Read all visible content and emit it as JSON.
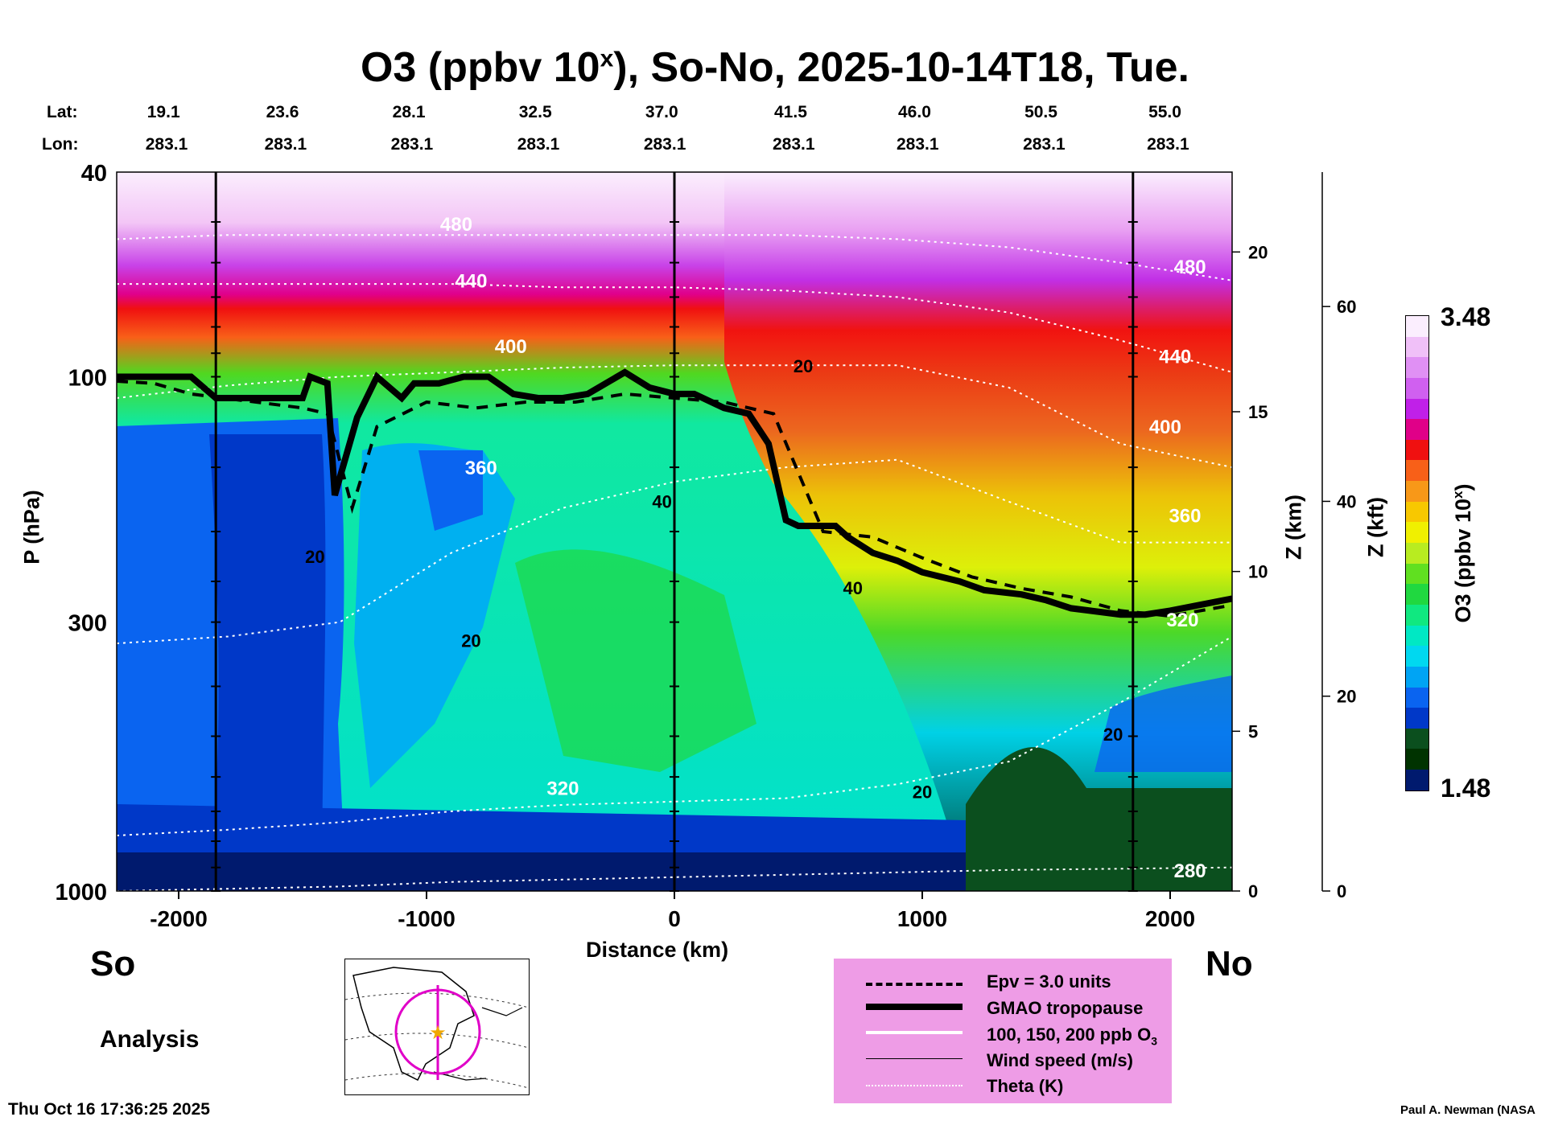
{
  "title_main": "O3 (ppbv 10",
  "title_sup": "x",
  "title_rest": "), So-No, 2025-10-14T18, Tue.",
  "lat_label": "Lat:",
  "lon_label": "Lon:",
  "lats": [
    "19.1",
    "23.6",
    "28.1",
    "32.5",
    "37.0",
    "41.5",
    "46.0",
    "50.5",
    "55.0"
  ],
  "lons": [
    "283.1",
    "283.1",
    "283.1",
    "283.1",
    "283.1",
    "283.1",
    "283.1",
    "283.1",
    "283.1"
  ],
  "left_label": "So",
  "right_label": "No",
  "analysis_label": "Analysis",
  "timestamp": "Thu Oct 16 17:36:25 2025",
  "credit": "Paul A. Newman (NASA",
  "colorbar": {
    "label": "O3 (ppbv 10",
    "label_sup": "x",
    "label_end": ")",
    "max": "3.48",
    "min": "1.48",
    "colors": [
      "#001a6e",
      "#003300",
      "#0b4f1e",
      "#0038c8",
      "#0a64f0",
      "#00a4f4",
      "#00d8f0",
      "#00e8c4",
      "#10e880",
      "#20d840",
      "#60e020",
      "#b8ec20",
      "#f0f000",
      "#f8c800",
      "#f89818",
      "#f86018",
      "#f01010",
      "#e00088",
      "#c020e8",
      "#d060f0",
      "#e090f4",
      "#f0c0f8",
      "#fbeefe"
    ]
  },
  "legend": {
    "epv": "Epv = 3.0 units",
    "trop": "GMAO tropopause",
    "o3_prefix": "100, 150, 200 ppb O",
    "o3_sub": "3",
    "wind": "Wind speed (m/s)",
    "theta": "Theta (K)"
  },
  "chart_data": {
    "type": "heatmap",
    "xlabel": "Distance (km)",
    "ylabel": "P (hPa)",
    "y2label": "Z (km)",
    "y3label": "Z (kft)",
    "xlim": [
      -2250,
      2250
    ],
    "ylim": [
      1000,
      40
    ],
    "y_scale": "log",
    "x_ticks": [
      "-2000",
      "-1000",
      "0",
      "1000",
      "2000"
    ],
    "x_tick_values": [
      -2000,
      -1000,
      0,
      1000,
      2000
    ],
    "p_ticks": [
      "40",
      "100",
      "300",
      "1000"
    ],
    "p_tick_values": [
      40,
      100,
      300,
      1000
    ],
    "z_km_ticks": [
      "0",
      "5",
      "10",
      "15",
      "20"
    ],
    "z_km_values": [
      0,
      5,
      10,
      15,
      20
    ],
    "z_kft_ticks": [
      "0",
      "20",
      "40",
      "60"
    ],
    "z_kft_values": [
      0,
      20,
      40,
      60
    ],
    "grid": false,
    "theta_labels": [
      {
        "text": "480",
        "x": -880,
        "p": 52
      },
      {
        "text": "440",
        "x": -820,
        "p": 67
      },
      {
        "text": "400",
        "x": -660,
        "p": 90
      },
      {
        "text": "360",
        "x": -780,
        "p": 155
      },
      {
        "text": "320",
        "x": -450,
        "p": 650
      },
      {
        "text": "480",
        "x": 2080,
        "p": 63
      },
      {
        "text": "440",
        "x": 2020,
        "p": 94
      },
      {
        "text": "400",
        "x": 1980,
        "p": 129
      },
      {
        "text": "360",
        "x": 2060,
        "p": 192
      },
      {
        "text": "320",
        "x": 2050,
        "p": 306
      },
      {
        "text": "280",
        "x": 2080,
        "p": 940
      }
    ],
    "wind_labels": [
      {
        "text": "20",
        "x": 520,
        "p": 98
      },
      {
        "text": "40",
        "x": -50,
        "p": 180
      },
      {
        "text": "20",
        "x": -1450,
        "p": 230
      },
      {
        "text": "20",
        "x": -820,
        "p": 335
      },
      {
        "text": "40",
        "x": 720,
        "p": 265
      },
      {
        "text": "20",
        "x": 1770,
        "p": 510
      },
      {
        "text": "20",
        "x": 1000,
        "p": 660
      }
    ],
    "tropopause": {
      "x": [
        -2250,
        -2000,
        -1950,
        -1850,
        -1500,
        -1470,
        -1400,
        -1370,
        -1280,
        -1200,
        -1100,
        -1050,
        -950,
        -850,
        -750,
        -650,
        -550,
        -450,
        -350,
        -200,
        -100,
        0,
        80,
        200,
        300,
        380,
        450,
        500,
        550,
        650,
        700,
        800,
        900,
        1000,
        1150,
        1250,
        1400,
        1500,
        1600,
        1800,
        1900,
        2000,
        2250
      ],
      "p": [
        100,
        100,
        100,
        110,
        110,
        100,
        103,
        170,
        120,
        100,
        110,
        103,
        103,
        100,
        100,
        108,
        110,
        110,
        108,
        98,
        105,
        108,
        108,
        115,
        118,
        135,
        190,
        195,
        195,
        195,
        205,
        220,
        228,
        240,
        250,
        260,
        265,
        272,
        282,
        290,
        290,
        285,
        270
      ]
    },
    "epv_line": {
      "x": [
        -2250,
        -2100,
        -1950,
        -1500,
        -1400,
        -1300,
        -1200,
        -1000,
        -800,
        -600,
        -400,
        -200,
        0,
        200,
        400,
        600,
        800,
        1000,
        1200,
        1400,
        1600,
        1800,
        2000,
        2250
      ],
      "p": [
        102,
        103,
        108,
        115,
        118,
        180,
        125,
        112,
        115,
        112,
        112,
        108,
        110,
        112,
        118,
        200,
        205,
        225,
        245,
        258,
        268,
        285,
        292,
        278
      ]
    },
    "theta_lines": [
      {
        "theta": 280,
        "p": [
          1000,
          990,
          980,
          960,
          950,
          940,
          930,
          920,
          910,
          905,
          900
        ]
      },
      {
        "theta": 320,
        "p": [
          780,
          760,
          735,
          700,
          680,
          670,
          660,
          620,
          560,
          430,
          320
        ]
      },
      {
        "theta": 360,
        "p": [
          330,
          320,
          300,
          220,
          180,
          160,
          150,
          145,
          175,
          210,
          210
        ]
      },
      {
        "theta": 400,
        "p": [
          110,
          104,
          100,
          98,
          96,
          95,
          95,
          95,
          105,
          135,
          150
        ]
      },
      {
        "theta": 440,
        "p": [
          66,
          66,
          66,
          66,
          67,
          67,
          68,
          70,
          75,
          85,
          98
        ]
      },
      {
        "theta": 480,
        "p": [
          54,
          53,
          53,
          53,
          53,
          53,
          53,
          54,
          56,
          60,
          65
        ]
      }
    ],
    "theta_x": [
      -2250,
      -1800,
      -1350,
      -900,
      -450,
      0,
      450,
      900,
      1350,
      1800,
      2250
    ]
  }
}
